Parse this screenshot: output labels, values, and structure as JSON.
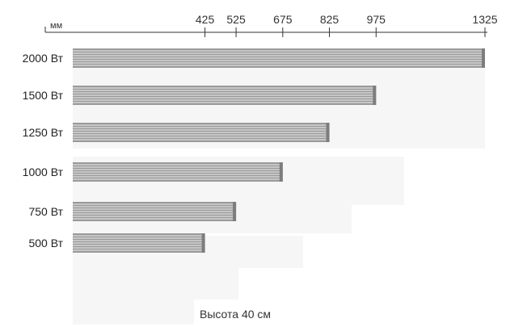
{
  "figure": {
    "unit_label": "мм",
    "caption": "Высота 40 см"
  },
  "chart_data": {
    "type": "bar",
    "orientation": "horizontal",
    "ticks": [
      425,
      525,
      675,
      825,
      975,
      1325
    ],
    "categories": [
      "2000 Вт",
      "1500 Вт",
      "1250 Вт",
      "1000 Вт",
      "750 Вт",
      "500 Вт"
    ],
    "values": [
      1325,
      975,
      825,
      675,
      525,
      425
    ],
    "xlabel": "мм",
    "colors": {
      "bar": "#9a9a9a",
      "stripe": "#f2f2f2",
      "ghost": "#f6f6f6",
      "axis": "#333333"
    }
  }
}
